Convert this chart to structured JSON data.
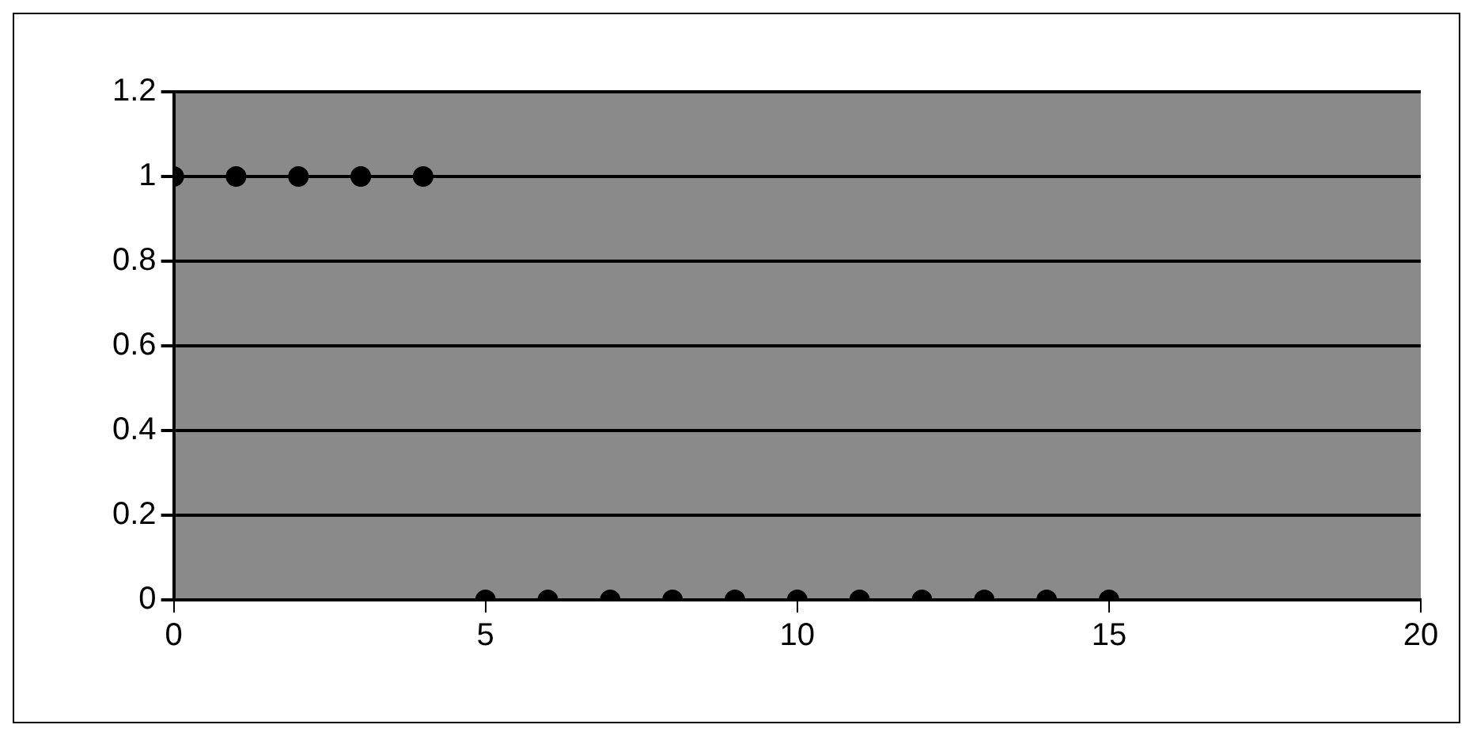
{
  "chart_data": {
    "type": "scatter",
    "x": [
      0,
      1,
      2,
      3,
      4,
      5,
      6,
      7,
      8,
      9,
      10,
      11,
      12,
      13,
      14,
      15
    ],
    "series": [
      {
        "color": "#000000",
        "values": [
          1,
          1,
          1,
          1,
          1,
          0,
          0,
          0,
          0,
          0,
          0,
          0,
          0,
          0,
          0,
          0
        ]
      }
    ],
    "xlim": [
      0,
      20
    ],
    "xticks": [
      0,
      5,
      10,
      15,
      20
    ],
    "ylim": [
      0,
      1.2
    ],
    "yticks": [
      0,
      0.2,
      0.4,
      0.6,
      0.8,
      1,
      1.2
    ],
    "grid": "y",
    "legend": false,
    "marker": "circle"
  }
}
